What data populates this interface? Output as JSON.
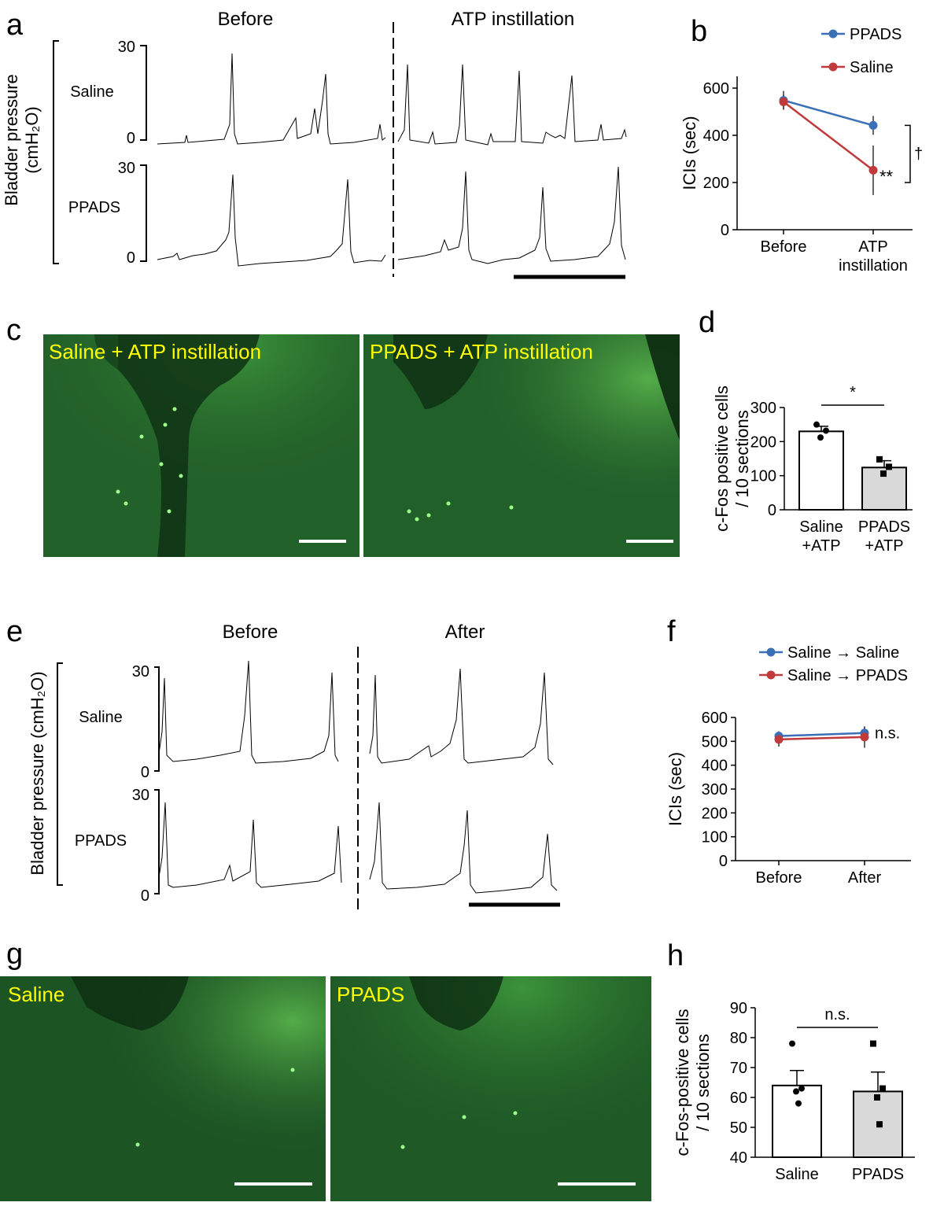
{
  "colors": {
    "blue": "#3b6fb6",
    "red": "#c0393b",
    "micro_bg": "#1f5a26",
    "micro_label": "#ffff00",
    "bar_gray": "#d9d9d9"
  },
  "panel_a": {
    "letter": "a",
    "col_before": "Before",
    "col_after": "ATP instillation",
    "ylabel": "Bladder pressure",
    "ylabel_unit": "(cmH₂O)",
    "row1": "Saline",
    "row2": "PPADS",
    "tick_top1": "30",
    "tick_bot1": "0",
    "tick_top2": "30",
    "tick_bot2": "0"
  },
  "panel_e": {
    "letter": "e",
    "col_before": "Before",
    "col_after": "After",
    "ylabel": "Bladder pressure (cmH₂O)",
    "row1": "Saline",
    "row2": "PPADS",
    "tick_top1": "30",
    "tick_bot1": "0",
    "tick_top2": "30",
    "tick_bot2": "0"
  },
  "panel_c": {
    "letter": "c",
    "left_label": "Saline + ATP instillation",
    "right_label": "PPADS + ATP instillation"
  },
  "panel_g": {
    "letter": "g",
    "left_label": "Saline",
    "right_label": "PPADS"
  },
  "panel_b": {
    "letter": "b",
    "dagger": "†",
    "stars": "**"
  },
  "panel_d": {
    "letter": "d",
    "sig": "*"
  },
  "panel_f": {
    "letter": "f",
    "ns": "n.s."
  },
  "panel_h": {
    "letter": "h",
    "ns": "n.s."
  },
  "chart_data": [
    {
      "id": "b",
      "type": "line",
      "categories": [
        "Before",
        "ATP\ninstillation"
      ],
      "ylabel": "ICIs (sec)",
      "ylim": [
        0,
        650
      ],
      "yticks": [
        0,
        200,
        400,
        600
      ],
      "legend_position": "top-right",
      "series": [
        {
          "name": "PPADS",
          "color": "#3b6fb6",
          "values": [
            548,
            442
          ],
          "err": [
            40,
            40
          ]
        },
        {
          "name": "Saline",
          "color": "#c0393b",
          "values": [
            542,
            252
          ],
          "err": [
            30,
            105
          ]
        }
      ]
    },
    {
      "id": "d",
      "type": "bar",
      "categories": [
        "Saline\n+ATP",
        "PPADS\n+ATP"
      ],
      "ylabel": "c-Fos positive cells\n/ 10 sections",
      "ylim": [
        0,
        300
      ],
      "yticks": [
        0,
        100,
        200,
        300
      ],
      "values": [
        230,
        124
      ],
      "err": [
        15,
        20
      ],
      "points": [
        [
          250,
          232,
          212
        ],
        [
          148,
          126,
          106
        ]
      ]
    },
    {
      "id": "f",
      "type": "line",
      "categories": [
        "Before",
        "After"
      ],
      "ylabel": "ICIs (sec)",
      "ylim": [
        0,
        600
      ],
      "yticks": [
        0,
        100,
        200,
        300,
        400,
        500,
        600
      ],
      "legend_position": "top",
      "series": [
        {
          "name": "Saline → Saline",
          "color": "#3b6fb6",
          "values": [
            522,
            535
          ],
          "err": [
            20,
            25
          ]
        },
        {
          "name": "Saline → PPADS",
          "color": "#c0393b",
          "values": [
            508,
            518
          ],
          "err": [
            30,
            45
          ]
        }
      ]
    },
    {
      "id": "h",
      "type": "bar",
      "categories": [
        "Saline",
        "PPADS"
      ],
      "ylabel": "c-Fos-positive cells\n/ 10 sections",
      "ylim": [
        40,
        90
      ],
      "yticks": [
        40,
        50,
        60,
        70,
        80,
        90
      ],
      "values": [
        64,
        62
      ],
      "err": [
        5,
        6.5
      ],
      "points": [
        [
          78,
          63,
          62,
          58
        ],
        [
          78,
          63,
          60,
          51
        ]
      ]
    }
  ]
}
